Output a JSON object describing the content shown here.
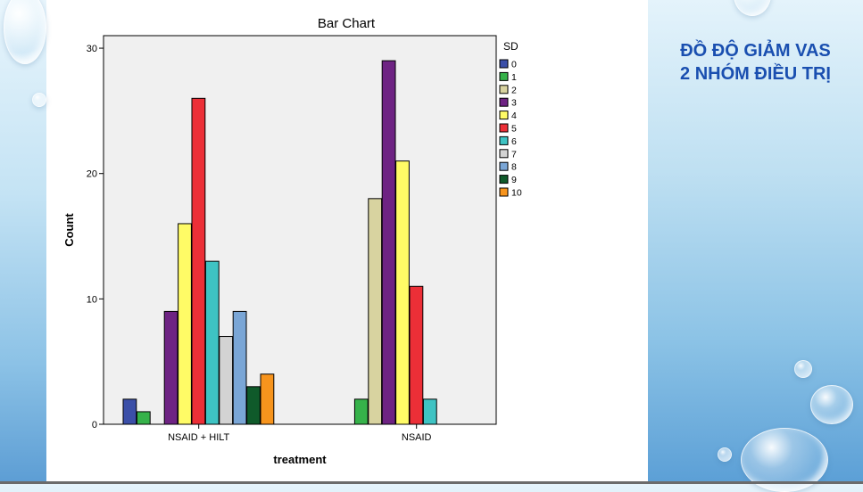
{
  "slide": {
    "title_line1": "ĐỒ ĐỘ GIẢM VAS",
    "title_line2": "2 NHÓM ĐIỀU TRỊ",
    "title_color": "#1a4fb0"
  },
  "chart_data": {
    "type": "bar",
    "title": "Bar Chart",
    "xlabel": "treatment",
    "ylabel": "Count",
    "ylim": [
      0,
      31
    ],
    "yticks": [
      0,
      10,
      20,
      30
    ],
    "grid": false,
    "legend_title": "SD",
    "legend_position": "right",
    "categories": [
      "NSAID + HILT",
      "NSAID"
    ],
    "series": [
      {
        "name": "0",
        "color": "#3b4fa8",
        "values": [
          2,
          0
        ]
      },
      {
        "name": "1",
        "color": "#36b24a",
        "values": [
          1,
          2
        ]
      },
      {
        "name": "2",
        "color": "#d8d3a0",
        "values": [
          0,
          18
        ]
      },
      {
        "name": "3",
        "color": "#6e2383",
        "values": [
          9,
          29
        ]
      },
      {
        "name": "4",
        "color": "#fffb66",
        "values": [
          16,
          21
        ]
      },
      {
        "name": "5",
        "color": "#ec2f37",
        "values": [
          26,
          11
        ]
      },
      {
        "name": "6",
        "color": "#3ec3c3",
        "values": [
          13,
          2
        ]
      },
      {
        "name": "7",
        "color": "#d3d3d3",
        "values": [
          7,
          0
        ]
      },
      {
        "name": "8",
        "color": "#7aa6d6",
        "values": [
          9,
          0
        ]
      },
      {
        "name": "9",
        "color": "#0f5a2a",
        "values": [
          3,
          0
        ]
      },
      {
        "name": "10",
        "color": "#f7941d",
        "values": [
          4,
          0
        ]
      }
    ]
  }
}
